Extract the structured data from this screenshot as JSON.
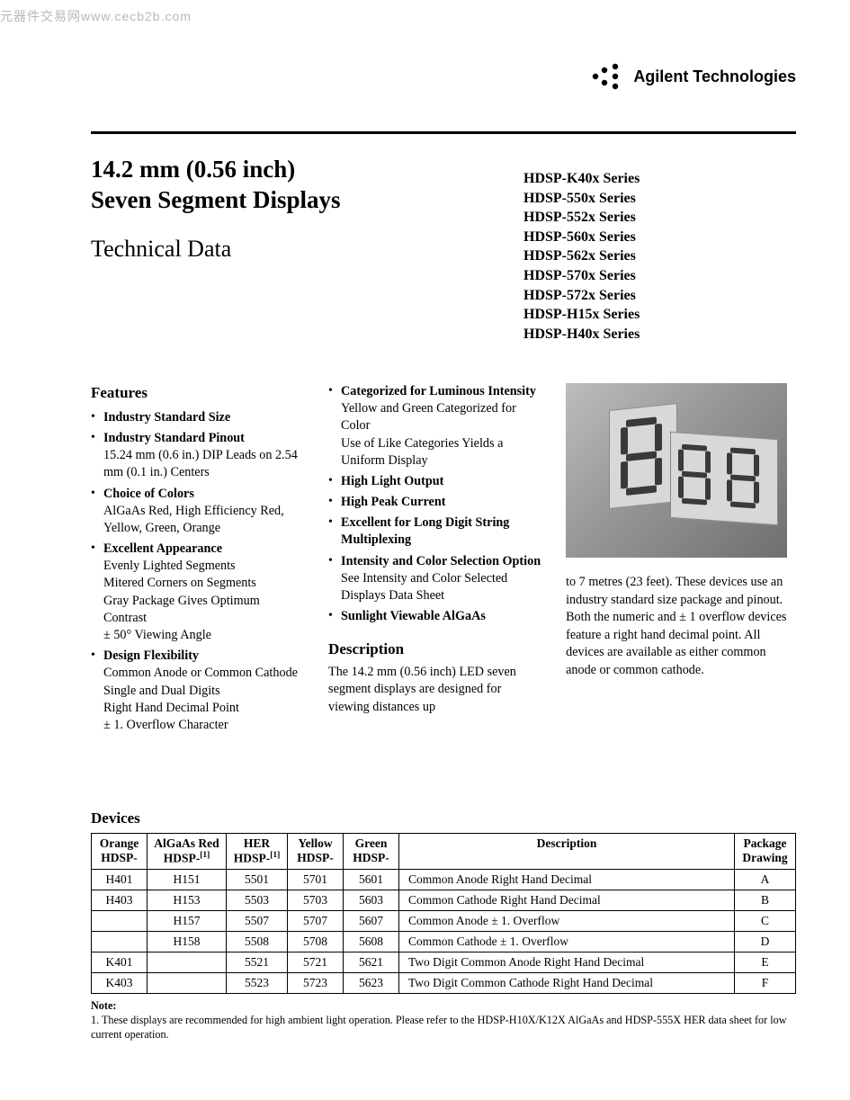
{
  "watermark": "元器件交易网www.cecb2b.com",
  "company": "Agilent Technologies",
  "title_line1": "14.2 mm (0.56 inch)",
  "title_line2": "Seven Segment Displays",
  "subtitle": "Technical Data",
  "series": [
    "HDSP-K40x Series",
    "HDSP-550x Series",
    "HDSP-552x Series",
    "HDSP-560x Series",
    "HDSP-562x Series",
    "HDSP-570x Series",
    "HDSP-572x Series",
    "HDSP-H15x Series",
    "HDSP-H40x Series"
  ],
  "features_heading": "Features",
  "features_col1": [
    {
      "title": "Industry Standard Size",
      "subs": []
    },
    {
      "title": "Industry Standard Pinout",
      "subs": [
        "15.24 mm (0.6 in.) DIP Leads on 2.54 mm (0.1 in.) Centers"
      ]
    },
    {
      "title": "Choice of Colors",
      "subs": [
        "AlGaAs Red, High Efficiency Red, Yellow, Green, Orange"
      ]
    },
    {
      "title": "Excellent Appearance",
      "subs": [
        "Evenly Lighted Segments",
        "Mitered Corners on Segments",
        "Gray Package Gives Optimum Contrast",
        "± 50° Viewing Angle"
      ]
    },
    {
      "title": "Design Flexibility",
      "subs": [
        "Common Anode or Common Cathode",
        "Single and Dual Digits",
        "Right Hand Decimal Point",
        "± 1. Overflow Character"
      ]
    }
  ],
  "features_col2": [
    {
      "title": "Categorized for Luminous Intensity",
      "subs": [
        "Yellow and Green Categorized for Color",
        "Use of Like Categories Yields a Uniform Display"
      ]
    },
    {
      "title": "High Light Output",
      "subs": []
    },
    {
      "title": "High Peak Current",
      "subs": []
    },
    {
      "title": "Excellent for Long Digit String Multiplexing",
      "subs": []
    },
    {
      "title": "Intensity and Color Selection Option",
      "subs": [
        "See Intensity and Color Selected Displays Data Sheet"
      ]
    },
    {
      "title": "Sunlight Viewable AlGaAs",
      "subs": []
    }
  ],
  "description_heading": "Description",
  "description_col2": "The 14.2 mm (0.56 inch) LED seven segment displays are designed for viewing distances up",
  "description_col3": "to 7 metres (23 feet). These devices use an industry standard size package and pinout. Both the numeric and ± 1 overflow devices feature a right hand decimal point. All devices are available as either common anode or common cathode.",
  "devices_heading": "Devices",
  "table": {
    "headers": [
      "Orange\nHDSP-",
      "AlGaAs Red\nHDSP-[1]",
      "HER\nHDSP-[1]",
      "Yellow\nHDSP-",
      "Green\nHDSP-",
      "Description",
      "Package\nDrawing"
    ],
    "rows": [
      [
        "H401",
        "H151",
        "5501",
        "5701",
        "5601",
        "Common Anode Right Hand Decimal",
        "A"
      ],
      [
        "H403",
        "H153",
        "5503",
        "5703",
        "5603",
        "Common Cathode Right Hand Decimal",
        "B"
      ],
      [
        "",
        "H157",
        "5507",
        "5707",
        "5607",
        "Common Anode ± 1. Overflow",
        "C"
      ],
      [
        "",
        "H158",
        "5508",
        "5708",
        "5608",
        "Common Cathode ± 1. Overflow",
        "D"
      ],
      [
        "K401",
        "",
        "5521",
        "5721",
        "5621",
        "Two Digit Common Anode Right Hand Decimal",
        "E"
      ],
      [
        "K403",
        "",
        "5523",
        "5723",
        "5623",
        "Two Digit Common Cathode Right Hand Decimal",
        "F"
      ]
    ]
  },
  "note_label": "Note:",
  "note_text": "1. These displays are recommended for high ambient light operation. Please refer to the HDSP-H10X/K12X AlGaAs and HDSP-555X HER data sheet for low current operation.",
  "colors": {
    "text": "#000000",
    "watermark": "#b8b8b8",
    "border": "#000000",
    "image_bg": "#969696"
  }
}
